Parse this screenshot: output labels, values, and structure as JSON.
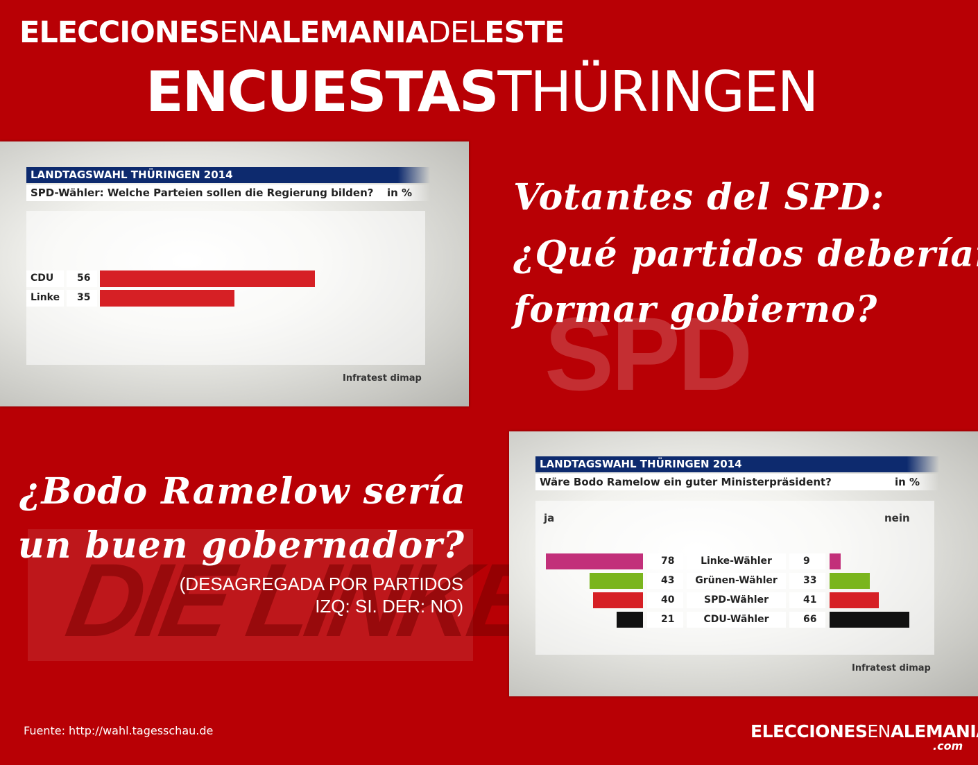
{
  "header": {
    "line1": [
      {
        "text": "ELECCIONES",
        "weight": "bold"
      },
      {
        "text": "EN",
        "weight": "normal"
      },
      {
        "text": "ALEMANIA",
        "weight": "bold"
      },
      {
        "text": "DEL",
        "weight": "normal"
      },
      {
        "text": "ESTE",
        "weight": "bold"
      }
    ],
    "line2": [
      {
        "text": "ENCUESTAS",
        "weight": "bold"
      },
      {
        "text": "THÜRINGEN",
        "weight": "normal"
      }
    ]
  },
  "watermarks": {
    "spd": "SPD",
    "linke": "DIE LINKE."
  },
  "question1": {
    "lines": [
      "Votantes del SPD:",
      "¿Qué partidos deberían",
      "formar gobierno?"
    ]
  },
  "question2": {
    "lines": [
      "¿Bodo Ramelow sería",
      "un buen gobernador?"
    ],
    "note": [
      "(DESAGREGADA POR PARTIDOS",
      "IZQ: SI. DER: NO)"
    ]
  },
  "colors": {
    "background": "#b80005",
    "chart_title_bg": "#0d2a6e",
    "bar_red": "#d62025",
    "linke": "#c2307a",
    "gruene": "#7ab51d",
    "spd": "#d62025",
    "cdu": "#111111"
  },
  "footer": {
    "source": "Fuente: http://wahl.tagesschau.de",
    "brand": [
      {
        "text": "ELECCIONES",
        "weight": "bold"
      },
      {
        "text": "EN",
        "weight": "normal"
      },
      {
        "text": "ALEMANIA",
        "weight": "bold"
      }
    ],
    "brand_suffix": ".com"
  },
  "chart_data": [
    {
      "type": "bar",
      "title": "LANDTAGSWAHL THÜRINGEN 2014",
      "subtitle": "SPD-Wähler: Welche Parteien sollen die Regierung bilden?",
      "unit": "in %",
      "source": "Infratest dimap",
      "categories": [
        "CDU",
        "Linke"
      ],
      "values": [
        56,
        35
      ],
      "bar_color": "#d62025",
      "orientation": "horizontal"
    },
    {
      "type": "bar",
      "title": "LANDTAGSWAHL THÜRINGEN 2014",
      "subtitle": "Wäre Bodo Ramelow ein guter Ministerpräsident?",
      "unit": "in %",
      "source": "Infratest dimap",
      "left_label": "ja",
      "right_label": "nein",
      "orientation": "diverging-horizontal",
      "categories": [
        "Linke-Wähler",
        "Grünen-Wähler",
        "SPD-Wähler",
        "CDU-Wähler"
      ],
      "series": [
        {
          "name": "ja",
          "values": [
            78,
            43,
            40,
            21
          ]
        },
        {
          "name": "nein",
          "values": [
            9,
            33,
            41,
            66
          ]
        }
      ],
      "category_colors": [
        "#c2307a",
        "#7ab51d",
        "#d62025",
        "#111111"
      ]
    }
  ]
}
